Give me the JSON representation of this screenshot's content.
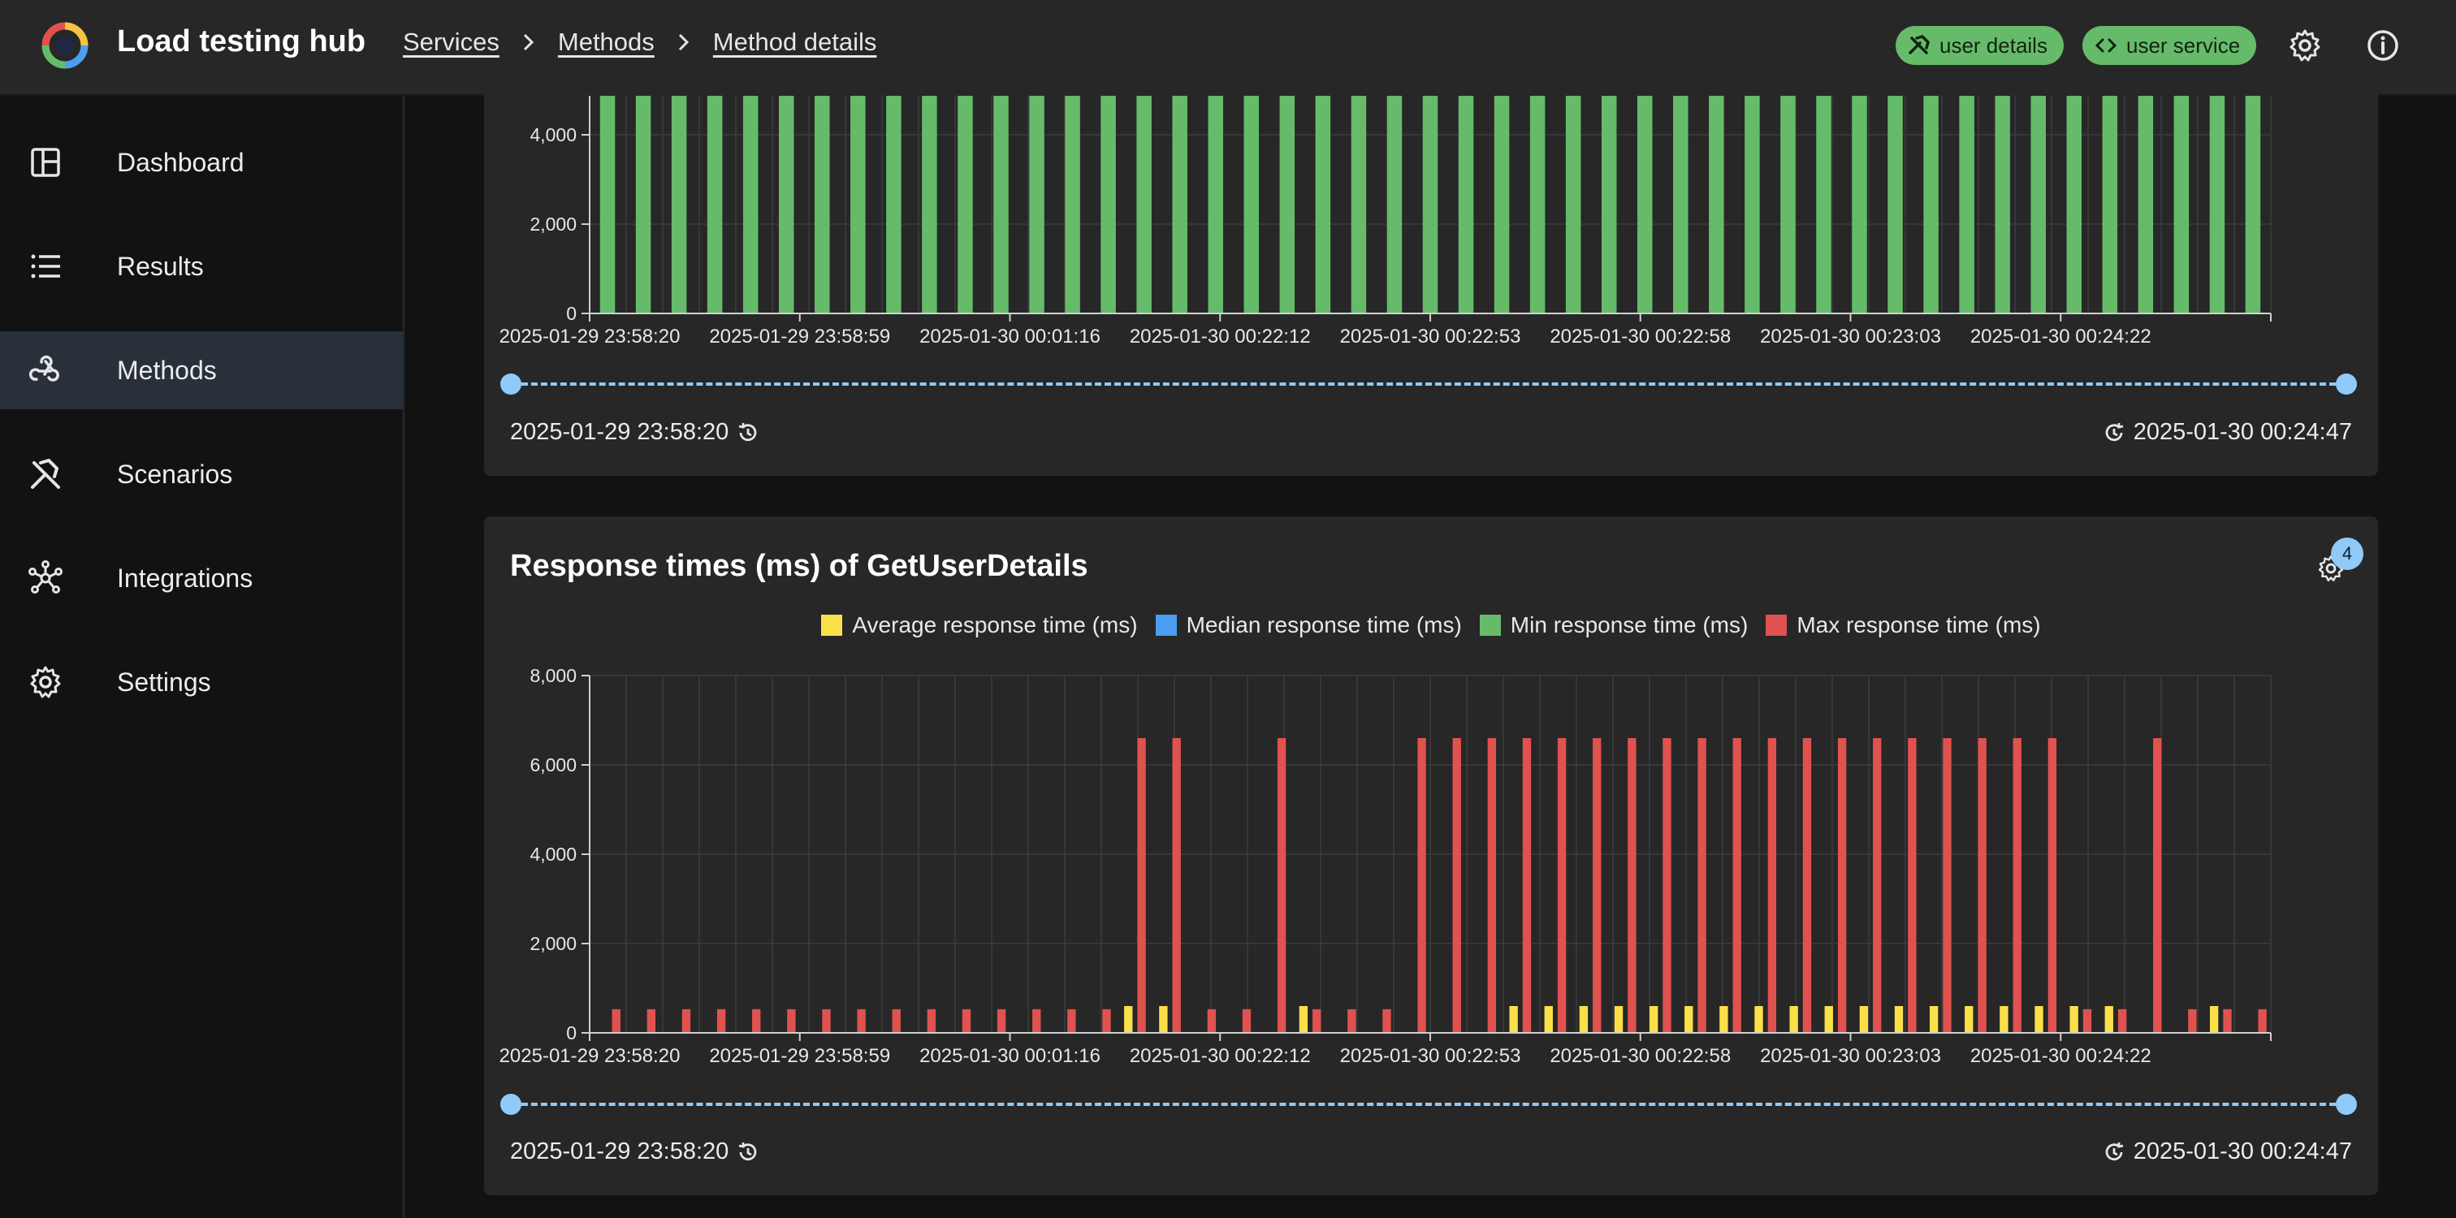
{
  "header": {
    "title": "Load testing hub",
    "breadcrumbs": [
      "Services",
      "Methods",
      "Method details"
    ],
    "chips": [
      {
        "label": "user details",
        "icon": "hammer-wrench-icon"
      },
      {
        "label": "user service",
        "icon": "code-brackets-icon"
      }
    ],
    "actions": [
      "settings-icon",
      "info-icon"
    ]
  },
  "sidebar": {
    "items": [
      {
        "label": "Dashboard",
        "icon": "dashboard-icon",
        "active": false
      },
      {
        "label": "Results",
        "icon": "list-icon",
        "active": false
      },
      {
        "label": "Methods",
        "icon": "webhook-icon",
        "active": true
      },
      {
        "label": "Scenarios",
        "icon": "tools-icon",
        "active": false
      },
      {
        "label": "Integrations",
        "icon": "hub-icon",
        "active": false
      },
      {
        "label": "Settings",
        "icon": "gear-icon",
        "active": false
      }
    ]
  },
  "colors": {
    "average": "#fbe04a",
    "median": "#4c9ff0",
    "min": "#66bb6a",
    "max": "#e0524f",
    "accent": "#90caf9"
  },
  "top_card": {
    "range_start": "2025-01-29 23:58:20",
    "range_end": "2025-01-30 00:24:47"
  },
  "response_card": {
    "title": "Response times (ms) of GetUserDetails",
    "settings_badge": "4",
    "range_start": "2025-01-29 23:58:20",
    "range_end": "2025-01-30 00:24:47"
  },
  "chart_data": [
    {
      "type": "bar",
      "series": [
        {
          "color": "#66bb6a",
          "values": [
            5200,
            5200,
            5200,
            5200,
            5200,
            5200,
            5200,
            5200,
            5200,
            5200,
            5200,
            5200,
            5200,
            5200,
            5200,
            5200,
            5200,
            5200,
            5200,
            5200,
            5200,
            5200,
            5200,
            5200,
            5200,
            5200,
            5200,
            5200,
            5200,
            5200,
            5200,
            5200,
            5200,
            5200,
            5200,
            5200,
            5200,
            5200,
            5200,
            5200,
            5200,
            5200,
            5200,
            5200,
            5200,
            5200,
            5200
          ]
        }
      ],
      "y_ticks": [
        0,
        2000,
        4000
      ],
      "y_tick_labels": [
        "0",
        "2,000",
        "4,000"
      ],
      "x_tick_labels": [
        "2025-01-29 23:58:20",
        "2025-01-29 23:58:59",
        "2025-01-30 00:01:16",
        "2025-01-30 00:22:12",
        "2025-01-30 00:22:53",
        "2025-01-30 00:22:58",
        "2025-01-30 00:23:03",
        "2025-01-30 00:24:22"
      ],
      "ylim": [
        0,
        4800
      ],
      "grid": true
    },
    {
      "type": "bar",
      "title": "Response times (ms) of GetUserDetails",
      "legend_position": "top",
      "series": [
        {
          "name": "Average response time (ms)",
          "color": "#fbe04a",
          "values": [
            0,
            0,
            0,
            0,
            0,
            0,
            0,
            0,
            0,
            0,
            0,
            0,
            0,
            0,
            0,
            600,
            600,
            0,
            0,
            0,
            600,
            0,
            0,
            0,
            0,
            0,
            600,
            600,
            600,
            600,
            600,
            600,
            600,
            600,
            600,
            600,
            600,
            600,
            600,
            600,
            600,
            600,
            600,
            600,
            0,
            0,
            600,
            0
          ]
        },
        {
          "name": "Median response time (ms)",
          "color": "#4c9ff0",
          "values": [
            0,
            0,
            0,
            0,
            0,
            0,
            0,
            0,
            0,
            0,
            0,
            0,
            0,
            0,
            0,
            0,
            0,
            0,
            0,
            0,
            0,
            0,
            0,
            0,
            0,
            0,
            0,
            0,
            0,
            0,
            0,
            0,
            0,
            0,
            0,
            0,
            0,
            0,
            0,
            0,
            0,
            0,
            0,
            0,
            0,
            0,
            0,
            0
          ]
        },
        {
          "name": "Min response time (ms)",
          "color": "#66bb6a",
          "values": [
            0,
            0,
            0,
            0,
            0,
            0,
            0,
            0,
            0,
            0,
            0,
            0,
            0,
            0,
            0,
            0,
            0,
            0,
            0,
            0,
            0,
            0,
            0,
            0,
            0,
            0,
            0,
            0,
            0,
            0,
            0,
            0,
            0,
            0,
            0,
            0,
            0,
            0,
            0,
            0,
            0,
            0,
            0,
            0,
            0,
            0,
            0,
            0
          ]
        },
        {
          "name": "Max response time (ms)",
          "color": "#e0524f",
          "values": [
            530,
            530,
            530,
            530,
            530,
            530,
            530,
            530,
            530,
            530,
            530,
            530,
            530,
            530,
            530,
            6600,
            6600,
            530,
            530,
            6600,
            530,
            530,
            530,
            6600,
            6600,
            6600,
            6600,
            6600,
            6600,
            6600,
            6600,
            6600,
            6600,
            6600,
            6600,
            6600,
            6600,
            6600,
            6600,
            6600,
            6600,
            6600,
            530,
            530,
            6600,
            530,
            530,
            530
          ]
        }
      ],
      "y_ticks": [
        0,
        2000,
        4000,
        6000,
        8000
      ],
      "y_tick_labels": [
        "0",
        "2,000",
        "4,000",
        "6,000",
        "8,000"
      ],
      "x_tick_labels": [
        "2025-01-29 23:58:20",
        "2025-01-29 23:58:59",
        "2025-01-30 00:01:16",
        "2025-01-30 00:22:12",
        "2025-01-30 00:22:53",
        "2025-01-30 00:22:58",
        "2025-01-30 00:23:03",
        "2025-01-30 00:24:22"
      ],
      "ylim": [
        0,
        8000
      ],
      "grid": true
    }
  ]
}
